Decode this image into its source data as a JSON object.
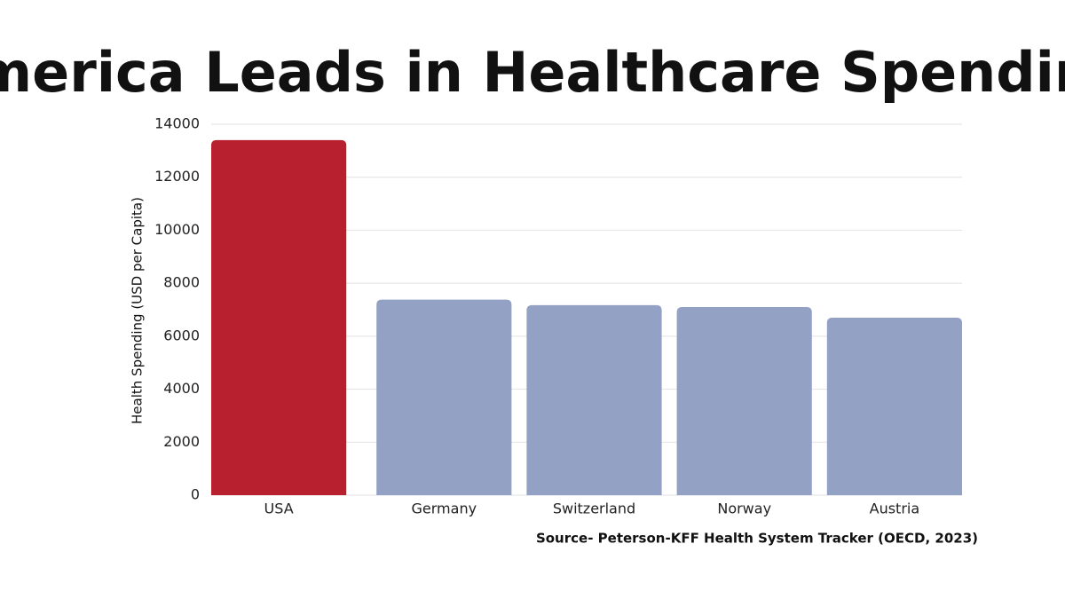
{
  "chart_data": {
    "type": "bar",
    "title": "America Leads in Healthcare Spending",
    "y_label": "Health Spending (USD per Capita)",
    "source": "Source- Peterson-KFF Health System Tracker (OECD, 2023)",
    "categories": [
      "USA",
      "Germany",
      "Switzerland",
      "Norway",
      "Austria"
    ],
    "values": [
      13400,
      7380,
      7170,
      7100,
      6700
    ],
    "colors": [
      "#b8202f",
      "#93a1c4",
      "#93a1c4",
      "#93a1c4",
      "#93a1c4"
    ],
    "ylim": [
      0,
      14000
    ],
    "yticks": [
      0,
      2000,
      4000,
      6000,
      8000,
      10000,
      12000,
      14000
    ],
    "grid": true
  }
}
